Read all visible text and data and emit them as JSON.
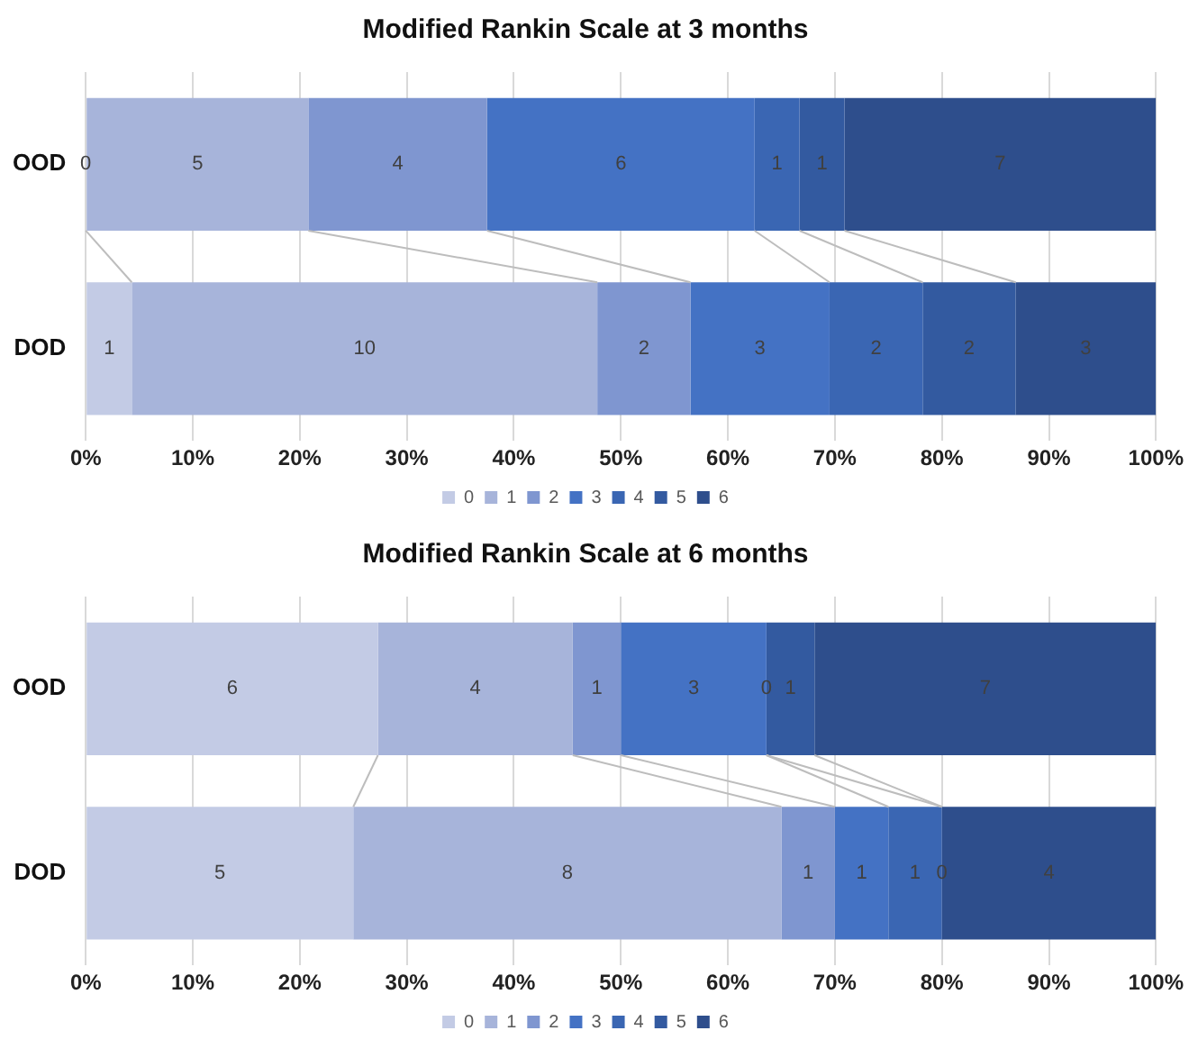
{
  "chart_data": [
    {
      "type": "bar",
      "title": "Modified Rankin Scale at 3 months",
      "orientation": "horizontal",
      "stacked": true,
      "categories": [
        "OOD",
        "DOD"
      ],
      "xlim": [
        0,
        100
      ],
      "xticks": [
        {
          "value": 0,
          "label": "0%"
        },
        {
          "value": 10,
          "label": "10%"
        },
        {
          "value": 20,
          "label": "20%"
        },
        {
          "value": 30,
          "label": "30%"
        },
        {
          "value": 40,
          "label": "40%"
        },
        {
          "value": 50,
          "label": "50%"
        },
        {
          "value": 60,
          "label": "60%"
        },
        {
          "value": 70,
          "label": "70%"
        },
        {
          "value": 80,
          "label": "80%"
        },
        {
          "value": 90,
          "label": "90%"
        },
        {
          "value": 100,
          "label": "100%"
        }
      ],
      "grid": "x",
      "legend": "bottom",
      "series": [
        {
          "name": "0",
          "color": "#c3cbe5",
          "values": [
            0,
            4.3
          ]
        },
        {
          "name": "1",
          "color": "#a7b4da",
          "values": [
            20.8,
            43.5
          ]
        },
        {
          "name": "2",
          "color": "#7f96d0",
          "values": [
            16.7,
            8.7
          ]
        },
        {
          "name": "3",
          "color": "#4472c4",
          "values": [
            25,
            13
          ]
        },
        {
          "name": "4",
          "color": "#3a66b3",
          "values": [
            4.2,
            8.7
          ]
        },
        {
          "name": "5",
          "color": "#335aa0",
          "values": [
            4.2,
            8.7
          ]
        },
        {
          "name": "6",
          "color": "#2e4e8c",
          "values": [
            29.1,
            13.1
          ]
        }
      ],
      "annotations": [
        "0",
        "5",
        "4",
        "6",
        "1",
        "1",
        "7",
        "1",
        "10",
        "2",
        "3",
        "2",
        "2",
        "3"
      ]
    },
    {
      "type": "bar",
      "title": "Modified Rankin Scale at 6 months",
      "orientation": "horizontal",
      "stacked": true,
      "categories": [
        "OOD",
        "DOD"
      ],
      "xlim": [
        0,
        100
      ],
      "xticks": [
        {
          "value": 0,
          "label": "0%"
        },
        {
          "value": 10,
          "label": "10%"
        },
        {
          "value": 20,
          "label": "20%"
        },
        {
          "value": 30,
          "label": "30%"
        },
        {
          "value": 40,
          "label": "40%"
        },
        {
          "value": 50,
          "label": "50%"
        },
        {
          "value": 60,
          "label": "60%"
        },
        {
          "value": 70,
          "label": "70%"
        },
        {
          "value": 80,
          "label": "80%"
        },
        {
          "value": 90,
          "label": "90%"
        },
        {
          "value": 100,
          "label": "100%"
        }
      ],
      "grid": "x",
      "legend": "bottom",
      "series": [
        {
          "name": "0",
          "color": "#c3cbe5",
          "values": [
            27.3,
            25
          ]
        },
        {
          "name": "1",
          "color": "#a7b4da",
          "values": [
            18.2,
            40
          ]
        },
        {
          "name": "2",
          "color": "#7f96d0",
          "values": [
            4.5,
            5
          ]
        },
        {
          "name": "3",
          "color": "#4472c4",
          "values": [
            13.6,
            5
          ]
        },
        {
          "name": "4",
          "color": "#3a66b3",
          "values": [
            0,
            5
          ]
        },
        {
          "name": "5",
          "color": "#335aa0",
          "values": [
            4.5,
            0
          ]
        },
        {
          "name": "6",
          "color": "#2e4e8c",
          "values": [
            31.9,
            20
          ]
        }
      ],
      "annotations": [
        "6",
        "4",
        "1",
        "3",
        "0",
        "1",
        "7",
        "5",
        "8",
        "1",
        "1",
        "1",
        "0",
        "4"
      ]
    }
  ]
}
